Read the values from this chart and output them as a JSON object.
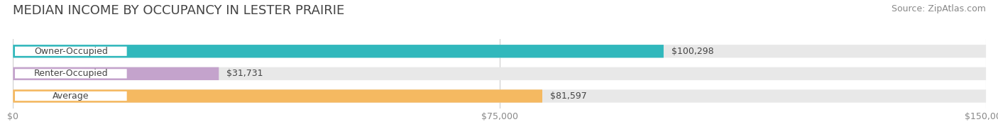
{
  "title": "MEDIAN INCOME BY OCCUPANCY IN LESTER PRAIRIE",
  "source": "Source: ZipAtlas.com",
  "categories": [
    "Owner-Occupied",
    "Renter-Occupied",
    "Average"
  ],
  "values": [
    100298,
    31731,
    81597
  ],
  "bar_colors": [
    "#31b8bc",
    "#c4a3cc",
    "#f5b961"
  ],
  "bar_labels": [
    "$100,298",
    "$31,731",
    "$81,597"
  ],
  "xlim": [
    0,
    150000
  ],
  "xticks": [
    0,
    75000,
    150000
  ],
  "xtick_labels": [
    "$0",
    "$75,000",
    "$150,000"
  ],
  "background_color": "#ffffff",
  "bar_background_color": "#e8e8e8",
  "title_fontsize": 13,
  "source_fontsize": 9,
  "label_fontsize": 9,
  "tick_fontsize": 9,
  "bar_height": 0.58
}
